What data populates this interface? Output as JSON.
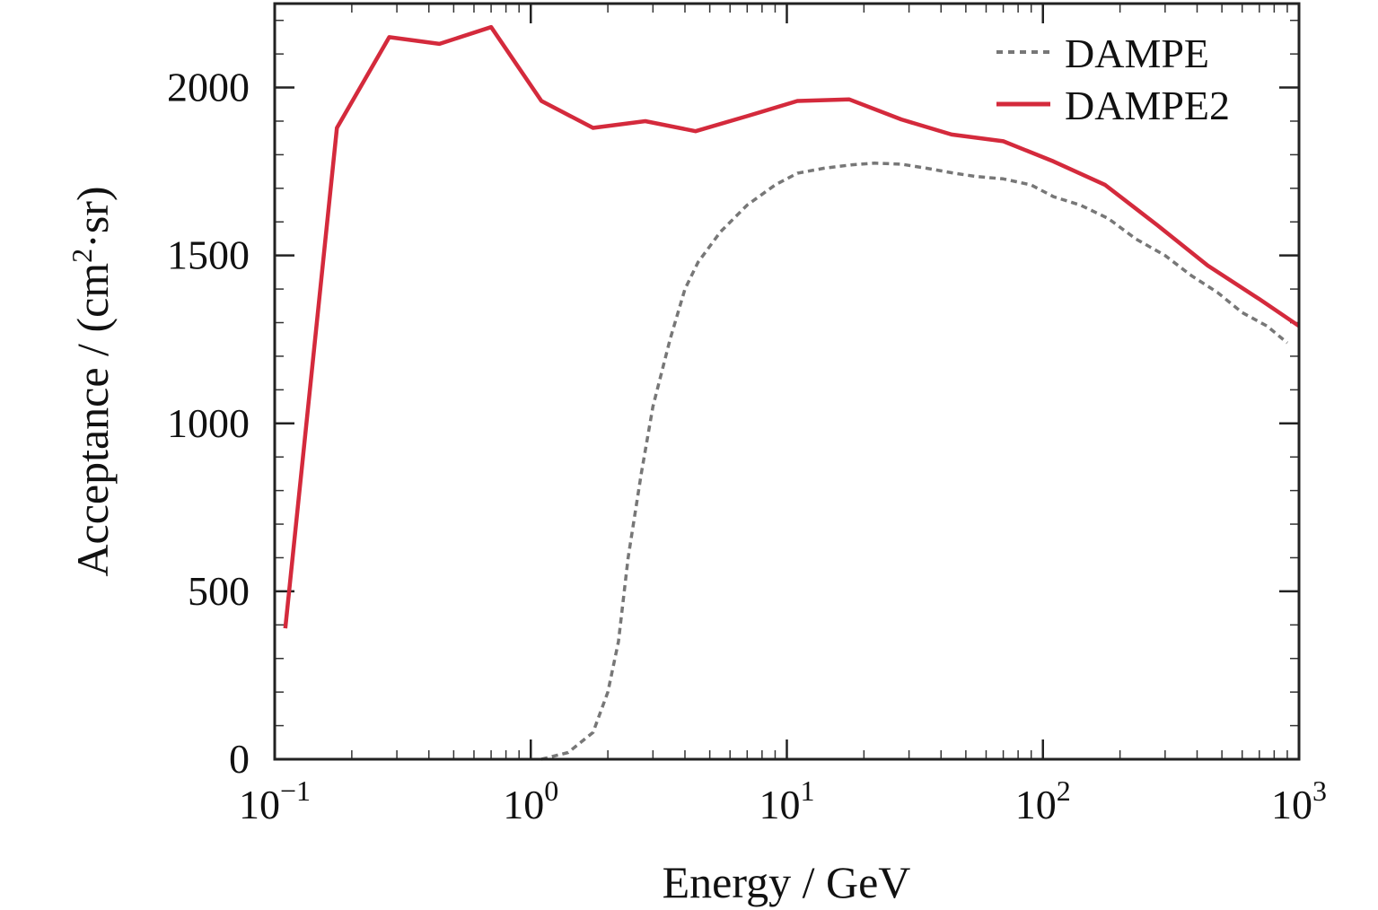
{
  "chart_data": {
    "type": "line",
    "title": "",
    "xlabel": "Energy / GeV",
    "ylabel": "Acceptance / (cm",
    "ylabel_sup": "2",
    "ylabel_tail": "·sr)",
    "xscale": "log",
    "xlim": [
      0.1,
      1000
    ],
    "ylim": [
      0,
      2250
    ],
    "x_ticks": [
      {
        "value": 0.1,
        "base": "10",
        "exp": "−1"
      },
      {
        "value": 1,
        "base": "10",
        "exp": "0"
      },
      {
        "value": 10,
        "base": "10",
        "exp": "1"
      },
      {
        "value": 100,
        "base": "10",
        "exp": "2"
      },
      {
        "value": 1000,
        "base": "10",
        "exp": "3"
      }
    ],
    "y_ticks": [
      0,
      500,
      1000,
      1500,
      2000
    ],
    "y_minor_step": 100,
    "grid": false,
    "legend_position": "top-right",
    "series": [
      {
        "name": "DAMPE",
        "color": "#777777",
        "style": "dashed",
        "x": [
          1.1,
          1.4,
          1.75,
          2.0,
          2.2,
          2.4,
          2.7,
          3.0,
          3.5,
          4.0,
          4.5,
          5.5,
          7,
          9,
          11,
          14,
          18,
          22,
          28,
          35,
          45,
          55,
          70,
          90,
          110,
          140,
          180,
          230,
          300,
          380,
          480,
          600,
          750,
          900
        ],
        "y": [
          0,
          20,
          80,
          200,
          350,
          600,
          850,
          1050,
          1250,
          1400,
          1480,
          1570,
          1650,
          1710,
          1745,
          1760,
          1770,
          1775,
          1772,
          1760,
          1745,
          1735,
          1728,
          1710,
          1675,
          1650,
          1610,
          1550,
          1500,
          1440,
          1390,
          1330,
          1290,
          1240
        ]
      },
      {
        "name": "DAMPE2",
        "color": "#d42a3c",
        "style": "solid",
        "x": [
          0.11,
          0.175,
          0.28,
          0.44,
          0.7,
          1.1,
          1.75,
          2.8,
          4.4,
          7,
          11,
          17.5,
          28,
          44,
          70,
          110,
          175,
          280,
          440,
          700,
          1000
        ],
        "y": [
          390,
          1880,
          2150,
          2130,
          2180,
          1960,
          1880,
          1900,
          1870,
          1915,
          1960,
          1965,
          1905,
          1860,
          1840,
          1780,
          1710,
          1590,
          1470,
          1370,
          1290
        ]
      }
    ]
  }
}
